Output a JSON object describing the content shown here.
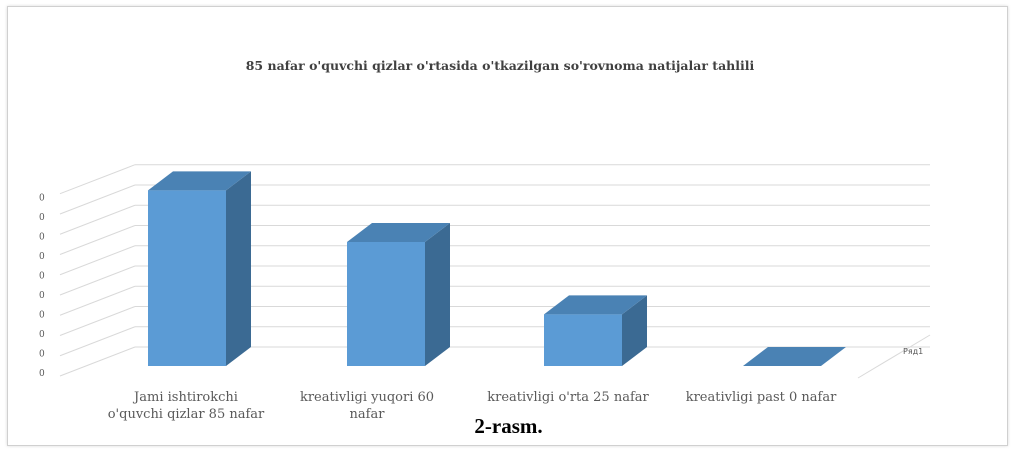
{
  "chart_data": {
    "type": "bar",
    "title": "85 nafar o'quvchi qizlar o'rtasida o'tkazilgan so'rovnoma natijalar tahlili",
    "categories": [
      [
        "Jami ishtirokchi",
        "o'quvchi qizlar 85 nafar"
      ],
      [
        "kreativligi yuqori 60",
        "nafar"
      ],
      [
        "kreativligi o'rta 25 nafar"
      ],
      [
        "kreativligi past 0 nafar"
      ]
    ],
    "series": [
      {
        "name": "Ряд1",
        "values": [
          85,
          60,
          25,
          0
        ]
      }
    ],
    "y_tick_labels": [
      "0",
      "0",
      "0",
      "0",
      "0",
      "0",
      "0",
      "0",
      "0",
      "0"
    ],
    "ylim": [
      0,
      90
    ],
    "grid": true,
    "three_d": true,
    "colors": {
      "bar_front": "#5b9bd5",
      "bar_side": "#3b6a93",
      "bar_top": "#4a82b4",
      "grid": "#d9d9d9"
    }
  },
  "caption": "2-rasm."
}
